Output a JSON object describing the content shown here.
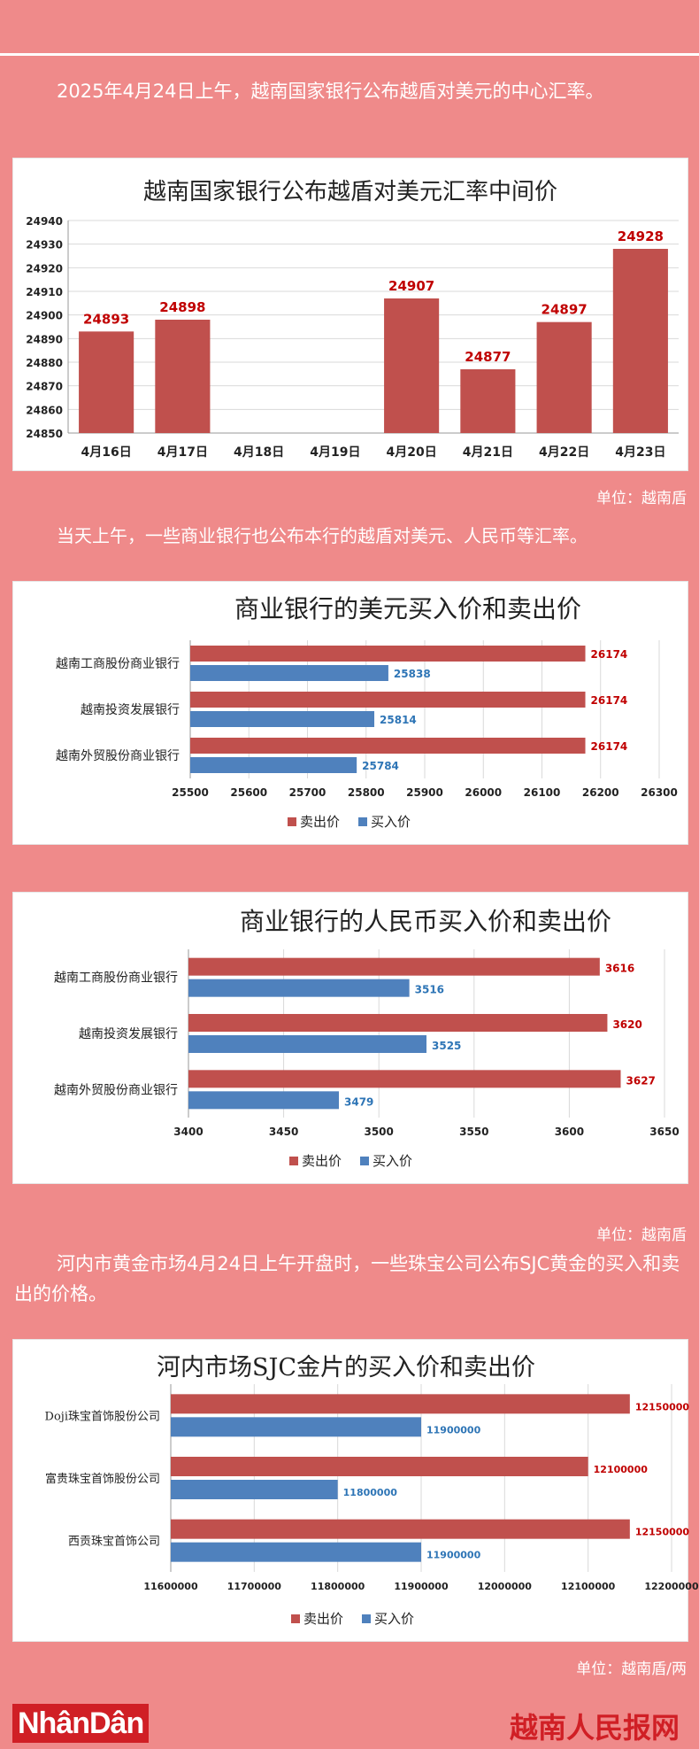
{
  "intro_text": "2025年4月24日上午，越南国家银行公布越盾对美元的中心汇率。",
  "unit_1": "单位：越南盾",
  "commercial_text": "当天上午，一些商业银行也公布本行的越盾对美元、人民币等汇率。",
  "unit_2": "单位：越南盾",
  "gold_text": "河内市黄金市场4月24日上午开盘时，一些珠宝公司公布SJC黄金的买入和卖出的价格。",
  "unit_3": "单位：越南盾/两",
  "logo_left": "NhânDân",
  "logo_right": "越南人民报网",
  "colors": {
    "red": "#c0504d",
    "blue": "#4f81bd",
    "background": "#ef8a8a"
  },
  "chart_data": [
    {
      "type": "bar",
      "title": "越南国家银行公布越盾对美元汇率中间价",
      "categories": [
        "4月16日",
        "4月17日",
        "4月18日",
        "4月19日",
        "4月20日",
        "4月21日",
        "4月22日",
        "4月23日"
      ],
      "values": [
        24893,
        24898,
        null,
        null,
        24907,
        24877,
        24897,
        24928
      ],
      "ylim": [
        24850,
        24940
      ],
      "yticks": [
        24850,
        24860,
        24870,
        24880,
        24890,
        24900,
        24910,
        24920,
        24930,
        24940
      ],
      "grid": true,
      "xlabel": "",
      "ylabel": ""
    },
    {
      "type": "bar",
      "orientation": "horizontal",
      "title": "商业银行的美元买入价和卖出价",
      "categories": [
        "越南工商股份商业银行",
        "越南投资发展银行",
        "越南外贸股份商业银行"
      ],
      "series": [
        {
          "name": "卖出价",
          "values": [
            26174,
            26174,
            26174
          ]
        },
        {
          "name": "买入价",
          "values": [
            25838,
            25814,
            25784
          ]
        }
      ],
      "xlim": [
        25500,
        26300
      ],
      "xticks": [
        25500,
        25600,
        25700,
        25800,
        25900,
        26000,
        26100,
        26200,
        26300
      ],
      "grid": true,
      "legend": "bottom"
    },
    {
      "type": "bar",
      "orientation": "horizontal",
      "title": "商业银行的人民币买入价和卖出价",
      "categories": [
        "越南工商股份商业银行",
        "越南投资发展银行",
        "越南外贸股份商业银行"
      ],
      "series": [
        {
          "name": "卖出价",
          "values": [
            3616,
            3620,
            3627
          ]
        },
        {
          "name": "买入价",
          "values": [
            3516,
            3525,
            3479
          ]
        }
      ],
      "xlim": [
        3400,
        3650
      ],
      "xticks": [
        3400,
        3450,
        3500,
        3550,
        3600,
        3650
      ],
      "grid": true,
      "legend": "bottom"
    },
    {
      "type": "bar",
      "orientation": "horizontal",
      "title": "河内市场SJC金片的买入价和卖出价",
      "categories": [
        "Doji珠宝首饰股份公司",
        "富贵珠宝首饰股份公司",
        "西贡珠宝首饰公司"
      ],
      "series": [
        {
          "name": "卖出价",
          "values": [
            12150000,
            12100000,
            12150000
          ]
        },
        {
          "name": "买入价",
          "values": [
            11900000,
            11800000,
            11900000
          ]
        }
      ],
      "xlim": [
        11600000,
        12200000
      ],
      "xticks": [
        11600000,
        11700000,
        11800000,
        11900000,
        12000000,
        12100000,
        12200000
      ],
      "grid": true,
      "legend": "bottom"
    }
  ]
}
